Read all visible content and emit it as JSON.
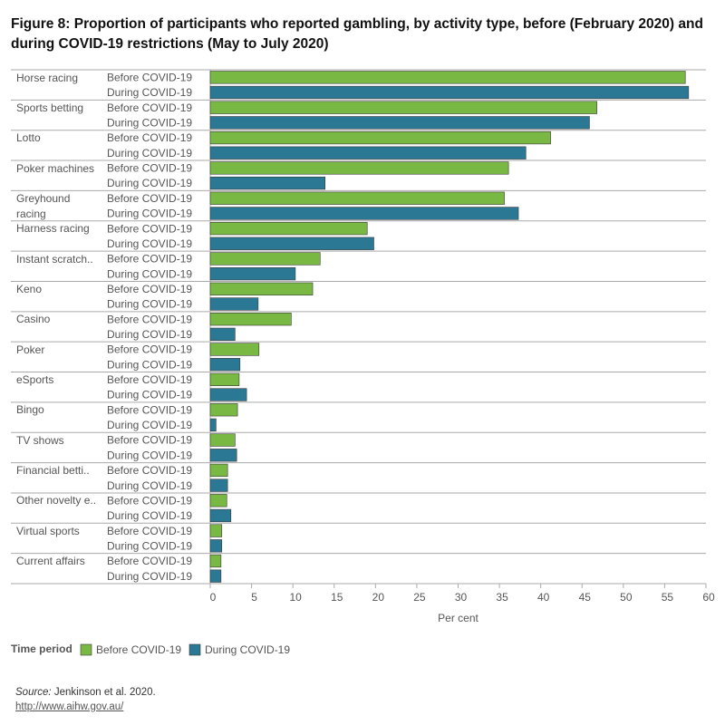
{
  "chart_data": {
    "type": "bar",
    "orientation": "horizontal",
    "title": "Figure 8: Proportion of participants who reported gambling, by activity type,  before (February 2020) and during  COVID-19 restrictions (May to July 2020)",
    "categories": [
      "Horse racing",
      "Sports betting",
      "Lotto",
      "Poker machines",
      "Greyhound racing",
      "Harness racing",
      "Instant scratch..",
      "Keno",
      "Casino",
      "Poker",
      "eSports",
      "Bingo",
      "TV shows",
      "Financial betti..",
      "Other novelty e..",
      "Virtual sports",
      "Current affairs"
    ],
    "series": [
      {
        "name": "Before COVID-19",
        "color": "#78b843",
        "values": [
          57.5,
          46.8,
          41.2,
          36.1,
          35.6,
          19.0,
          13.3,
          12.4,
          9.8,
          5.9,
          3.5,
          3.3,
          3.0,
          2.1,
          2.0,
          1.4,
          1.3
        ]
      },
      {
        "name": "During COVID-19",
        "color": "#2b7895",
        "values": [
          57.9,
          45.9,
          38.2,
          13.9,
          37.3,
          19.8,
          10.3,
          5.8,
          3.0,
          3.6,
          4.4,
          0.7,
          3.2,
          2.1,
          2.5,
          1.4,
          1.3
        ]
      }
    ],
    "xlim": [
      0,
      60
    ],
    "xticks": [
      0,
      5,
      10,
      15,
      20,
      25,
      30,
      35,
      40,
      45,
      50,
      55,
      60
    ],
    "xlabel": "Per cent",
    "grid": false,
    "legend_title": "Time period",
    "source_label": "Source:",
    "source_text": "Jenkinson et al. 2020.",
    "source_url": "http://www.aihw.gov.au/"
  }
}
